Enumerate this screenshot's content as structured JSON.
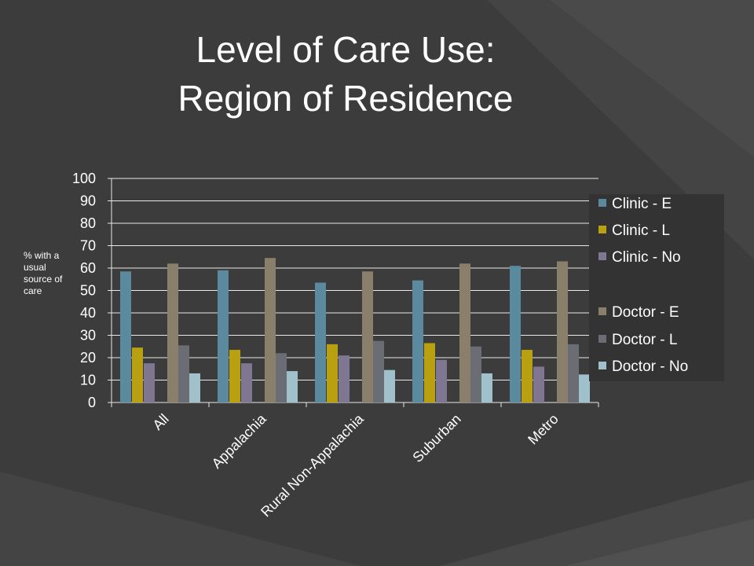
{
  "slide": {
    "title_line1": "Level of Care Use:",
    "title_line2": "Region of Residence",
    "background": "#3c3c3c"
  },
  "chart_data": {
    "type": "bar",
    "categories": [
      "All",
      "Appalachia",
      "Rural Non-Appalachia",
      "Suburban",
      "Metro"
    ],
    "ylabel": "% with a usual source of care",
    "ylim": [
      0,
      100
    ],
    "yticks": [
      0,
      10,
      20,
      30,
      40,
      50,
      60,
      70,
      80,
      90,
      100
    ],
    "grid": true,
    "legend_position": "right",
    "series": [
      {
        "name": "Clinic - E",
        "color": "#5b8a9e",
        "values": [
          58.5,
          59,
          53.5,
          54.5,
          61
        ]
      },
      {
        "name": "Clinic - L",
        "color": "#b8a010",
        "values": [
          24.5,
          23.5,
          26,
          26.5,
          23.5
        ]
      },
      {
        "name": "Clinic - No",
        "color": "#7f7692",
        "values": [
          17.5,
          17.5,
          21,
          19,
          16
        ]
      },
      {
        "name": "Doctor - E",
        "color": "#8a7f6a",
        "values": [
          62,
          64.5,
          58.5,
          62,
          63
        ]
      },
      {
        "name": "Doctor - L",
        "color": "#6a6d73",
        "values": [
          25.5,
          22,
          27.5,
          25,
          26
        ]
      },
      {
        "name": "Doctor - No",
        "color": "#a0c0cc",
        "values": [
          13,
          14,
          14.5,
          13,
          12.5
        ]
      }
    ]
  }
}
